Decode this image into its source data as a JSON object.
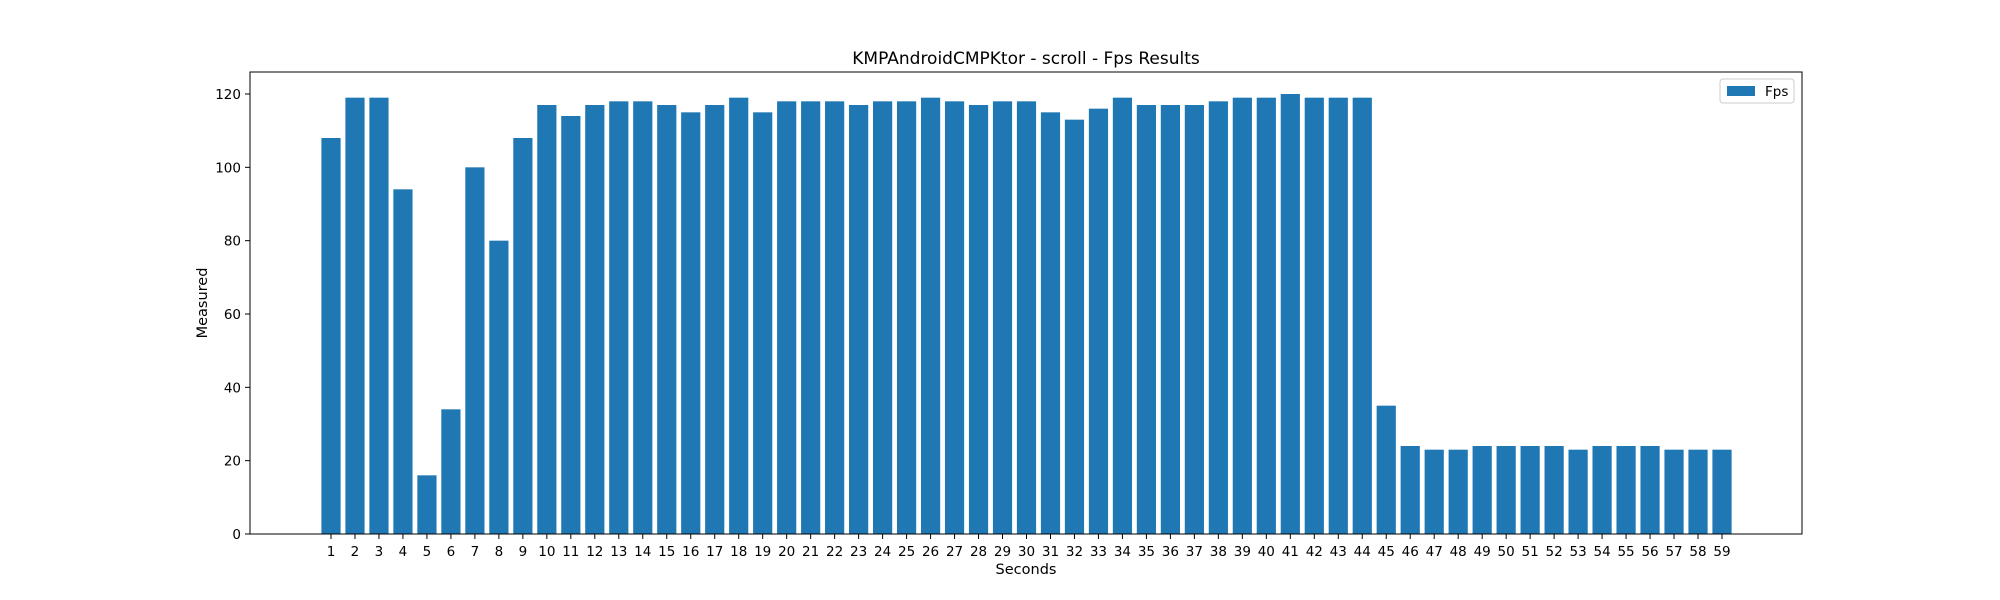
{
  "chart_data": {
    "type": "bar",
    "title": "KMPAndroidCMPKtor - scroll - Fps Results",
    "xlabel": "Seconds",
    "ylabel": "Measured",
    "ylim": [
      0,
      126
    ],
    "yticks": [
      0,
      20,
      40,
      60,
      80,
      100,
      120
    ],
    "grid": false,
    "legend_placement": "top-right",
    "bar_color": "#1f77b4",
    "categories": [
      "1",
      "2",
      "3",
      "4",
      "5",
      "6",
      "7",
      "8",
      "9",
      "10",
      "11",
      "12",
      "13",
      "14",
      "15",
      "16",
      "17",
      "18",
      "19",
      "20",
      "21",
      "22",
      "23",
      "24",
      "25",
      "26",
      "27",
      "28",
      "29",
      "30",
      "31",
      "32",
      "33",
      "34",
      "35",
      "36",
      "37",
      "38",
      "39",
      "40",
      "41",
      "42",
      "43",
      "44",
      "45",
      "46",
      "47",
      "48",
      "49",
      "50",
      "51",
      "52",
      "53",
      "54",
      "55",
      "56",
      "57",
      "58",
      "59"
    ],
    "series": [
      {
        "name": "Fps",
        "values": [
          108,
          119,
          119,
          94,
          16,
          34,
          100,
          80,
          108,
          117,
          114,
          117,
          118,
          118,
          117,
          115,
          117,
          119,
          115,
          118,
          118,
          118,
          117,
          118,
          118,
          119,
          118,
          117,
          118,
          118,
          115,
          113,
          116,
          119,
          117,
          117,
          117,
          118,
          119,
          119,
          120,
          119,
          119,
          119,
          35,
          24,
          23,
          23,
          24,
          24,
          24,
          24,
          23,
          24,
          24,
          24,
          23,
          23,
          23
        ]
      }
    ]
  }
}
